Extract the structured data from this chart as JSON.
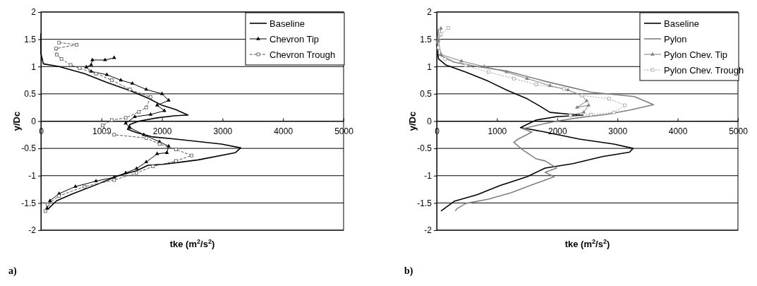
{
  "chart_data": [
    {
      "type": "line",
      "xlabel": "tke (m$^{2}$/s$^{2}$)",
      "ylabel": "y/Dc",
      "xlim": [
        0,
        5000
      ],
      "xticks": [
        0,
        1000,
        2000,
        3000,
        4000,
        5000
      ],
      "ylim": [
        -2,
        2
      ],
      "yticks": [
        -2,
        -1.5,
        -1,
        -0.5,
        0,
        0.5,
        1,
        1.5,
        2
      ],
      "grid": "y",
      "legend": "top right",
      "annotations": [
        "a)"
      ],
      "series": [
        {
          "name": "Baseline",
          "color": "#000000",
          "marker": "none",
          "line_style": "solid",
          "x": [
            0,
            0,
            40,
            300,
            720,
            1090,
            1470,
            1770,
            2000,
            2230,
            2430,
            2230,
            1920,
            1620,
            1470,
            1430,
            1580,
            1850,
            2230,
            2980,
            3300,
            3210,
            2600,
            2040,
            1770,
            1580,
            1280,
            905,
            530,
            260,
            110
          ],
          "values": [
            1.61,
            1.24,
            1.05,
            1.0,
            0.87,
            0.71,
            0.56,
            0.42,
            0.29,
            0.21,
            0.11,
            0.1,
            0.06,
            0,
            -0.06,
            -0.15,
            -0.21,
            -0.29,
            -0.33,
            -0.42,
            -0.49,
            -0.58,
            -0.71,
            -0.79,
            -0.81,
            -0.91,
            -1.0,
            -1.17,
            -1.33,
            -1.46,
            -1.62
          ]
        },
        {
          "name": "Chevron Tip",
          "color": "#000000",
          "marker": "triangle",
          "line_style": "solid",
          "x": [
            1210,
            1060,
            850,
            830,
            750,
            830,
            1090,
            1320,
            1510,
            1740,
            2000,
            2110,
            1920,
            2040,
            1810,
            1550,
            1400,
            1470,
            1700,
            1960,
            2110,
            2080,
            1920,
            1740,
            1580,
            1400,
            1210,
            910,
            570,
            300,
            150,
            100
          ],
          "values": [
            1.16,
            1.12,
            1.12,
            1.03,
            0.99,
            0.91,
            0.85,
            0.75,
            0.69,
            0.58,
            0.5,
            0.38,
            0.29,
            0.19,
            0.12,
            0.08,
            -0.04,
            -0.12,
            -0.25,
            -0.38,
            -0.46,
            -0.58,
            -0.6,
            -0.75,
            -0.87,
            -0.95,
            -1.03,
            -1.1,
            -1.2,
            -1.33,
            -1.46,
            -1.6
          ]
        },
        {
          "name": "Chevron Trough",
          "color": "#555555",
          "marker": "square",
          "line_style": "dashed",
          "x": [
            300,
            590,
            250,
            260,
            340,
            490,
            640,
            910,
            1170,
            1470,
            1810,
            1740,
            1620,
            1400,
            1170,
            1020,
            1090,
            1210,
            1740,
            1960,
            2230,
            2490,
            2230,
            1850,
            1580,
            1210,
            720,
            300,
            110,
            75
          ],
          "values": [
            1.44,
            1.4,
            1.33,
            1.22,
            1.14,
            1.03,
            0.97,
            0.87,
            0.75,
            0.58,
            0.44,
            0.25,
            0.17,
            0.06,
            0.02,
            -0.08,
            -0.19,
            -0.25,
            -0.31,
            -0.42,
            -0.52,
            -0.63,
            -0.73,
            -0.83,
            -0.95,
            -1.08,
            -1.2,
            -1.37,
            -1.53,
            -1.65
          ]
        }
      ]
    },
    {
      "type": "line",
      "xlabel": "tke (m$^{2}$/s$^{2}$)",
      "ylabel": "y/Dc",
      "xlim": [
        0,
        5000
      ],
      "xticks": [
        0,
        1000,
        2000,
        3000,
        4000,
        5000
      ],
      "ylim": [
        -2,
        2
      ],
      "yticks": [
        -2,
        -1.5,
        -1,
        -0.5,
        0,
        0.5,
        1,
        1.5,
        2
      ],
      "grid": "y",
      "legend": "top right",
      "annotations": [
        "b)"
      ],
      "series": [
        {
          "name": "Baseline",
          "color": "#000000",
          "marker": "none",
          "line_style": "solid",
          "x": [
            0,
            30,
            150,
            480,
            860,
            1160,
            1500,
            1690,
            1880,
            2180,
            2430,
            1990,
            1650,
            1390,
            1500,
            1800,
            2370,
            2940,
            3260,
            3200,
            2750,
            2260,
            1800,
            1500,
            1050,
            670,
            290,
            70
          ],
          "values": [
            1.4,
            1.14,
            1.03,
            0.9,
            0.73,
            0.57,
            0.41,
            0.29,
            0.16,
            0.13,
            0.11,
            0.08,
            0.02,
            -0.12,
            -0.14,
            -0.2,
            -0.33,
            -0.42,
            -0.5,
            -0.57,
            -0.65,
            -0.78,
            -0.86,
            -1.02,
            -1.18,
            -1.35,
            -1.47,
            -1.65
          ]
        },
        {
          "name": "Pylon",
          "color": "#808080",
          "marker": "none",
          "line_style": "solid",
          "x": [
            30,
            10,
            30,
            290,
            670,
            1160,
            1500,
            1800,
            2260,
            2560,
            3280,
            3600,
            3200,
            2800,
            2400,
            1990,
            1650,
            1430,
            1580,
            1350,
            1280,
            1430,
            1650,
            1800,
            1990,
            1800,
            1950,
            1650,
            1240,
            860,
            480,
            330,
            310
          ],
          "values": [
            1.69,
            1.47,
            1.22,
            1.08,
            1.0,
            0.92,
            0.82,
            0.73,
            0.61,
            0.53,
            0.45,
            0.3,
            0.2,
            0.12,
            0.07,
            0,
            -0.08,
            -0.14,
            -0.2,
            -0.33,
            -0.39,
            -0.53,
            -0.69,
            -0.73,
            -0.86,
            -0.94,
            -1.02,
            -1.14,
            -1.31,
            -1.43,
            -1.51,
            -1.61,
            -1.65
          ]
        },
        {
          "name": "Pylon Chev. Tip",
          "color": "#808080",
          "marker": "triangle",
          "line_style": "solid",
          "x": [
            70,
            30,
            70,
            410,
            790,
            1160,
            1500,
            1880,
            2180,
            2410,
            2490,
            2330,
            2520,
            2440,
            2220
          ],
          "values": [
            1.7,
            1.47,
            1.22,
            1.1,
            1.0,
            0.9,
            0.78,
            0.65,
            0.57,
            0.47,
            0.37,
            0.25,
            0.29,
            0.16,
            0.11
          ]
        },
        {
          "name": "Pylon Chev. Trough",
          "color": "#a0a0a0",
          "marker": "square",
          "line_style": "dotted",
          "x": [
            190,
            70,
            30,
            140,
            480,
            860,
            1280,
            1650,
            2110,
            2410,
            2860,
            3120,
            2940,
            2560,
            2220
          ],
          "values": [
            1.71,
            1.59,
            1.35,
            1.14,
            1.02,
            0.9,
            0.78,
            0.67,
            0.59,
            0.47,
            0.41,
            0.29,
            0.16,
            0.12,
            0.1
          ]
        }
      ]
    }
  ]
}
